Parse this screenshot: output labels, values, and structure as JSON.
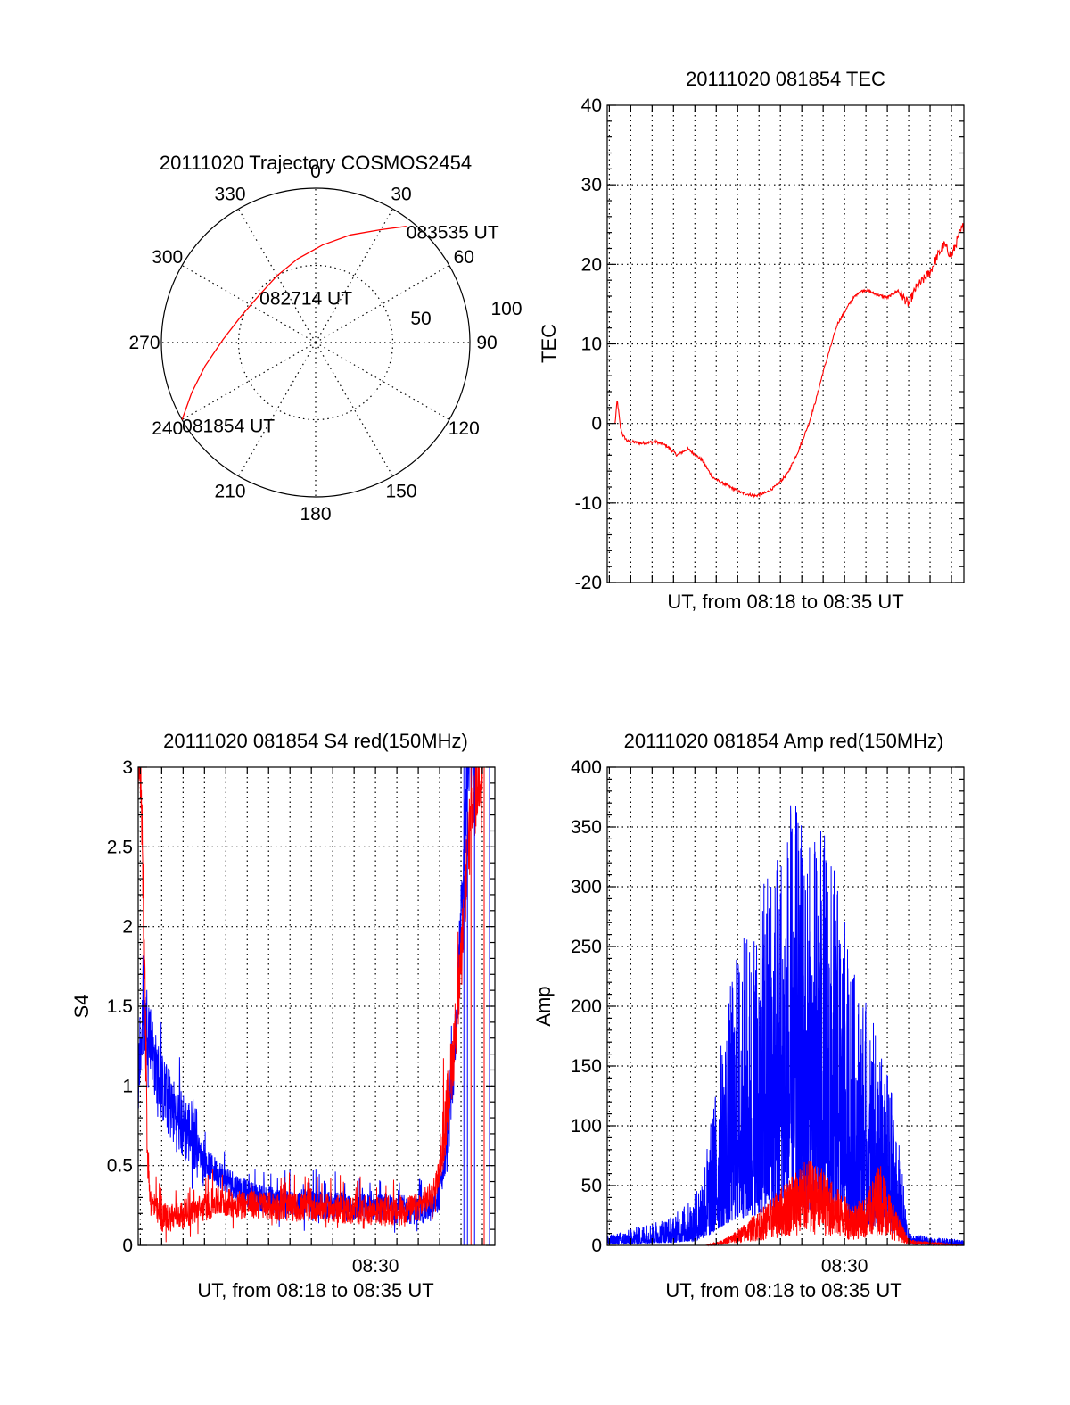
{
  "chart_data": [
    {
      "id": "trajectory",
      "type": "polar",
      "title": "20111020 Trajectory COSMOS2454",
      "angle_labels": [
        "0",
        "30",
        "60",
        "90",
        "120",
        "150",
        "180",
        "210",
        "240",
        "270",
        "300",
        "330"
      ],
      "radial_labels": [
        "50",
        "100"
      ],
      "series": [
        {
          "color": "#ff0000",
          "points": [
            {
              "az": 240,
              "el": 0
            },
            {
              "az": 248,
              "el": 12
            },
            {
              "az": 258,
              "el": 24
            },
            {
              "az": 272,
              "el": 36
            },
            {
              "az": 290,
              "el": 44
            },
            {
              "az": 310,
              "el": 47
            },
            {
              "az": 330,
              "el": 45
            },
            {
              "az": 348,
              "el": 40
            },
            {
              "az": 4,
              "el": 33
            },
            {
              "az": 18,
              "el": 24
            },
            {
              "az": 30,
              "el": 14
            },
            {
              "az": 38,
              "el": 4
            }
          ]
        }
      ],
      "annotations": [
        {
          "text": "081854 UT",
          "az": 240,
          "el": 0
        },
        {
          "text": "082714 UT",
          "az": 312,
          "el": 46
        },
        {
          "text": "083535 UT",
          "az": 38,
          "el": 4
        }
      ]
    },
    {
      "id": "tec",
      "type": "line",
      "title": "20111020 081854 TEC",
      "xlabel": "UT, from 08:18 to 08:35 UT",
      "ylabel": "TEC",
      "xlim": [
        "08:18:54",
        "08:35:35"
      ],
      "ylim": [
        -20,
        40
      ],
      "yticks": [
        "-20",
        "-10",
        "0",
        "10",
        "20",
        "30",
        "40"
      ],
      "series": [
        {
          "color": "#ff0000",
          "x": [
            "08:19:16",
            "08:19:22",
            "08:19:26",
            "08:19:31",
            "08:19:38",
            "08:19:50",
            "08:20:30",
            "08:21:10",
            "08:21:40",
            "08:22:10",
            "08:22:40",
            "08:23:20",
            "08:23:50",
            "08:24:30",
            "08:25:10",
            "08:25:50",
            "08:26:20",
            "08:26:50",
            "08:27:20",
            "08:27:50",
            "08:28:20",
            "08:28:40",
            "08:29:00",
            "08:29:20",
            "08:29:40",
            "08:30:00",
            "08:30:20",
            "08:30:40",
            "08:31:00",
            "08:31:30",
            "08:32:00",
            "08:32:30",
            "08:33:00",
            "08:33:20",
            "08:33:40",
            "08:34:00",
            "08:34:20",
            "08:34:40",
            "08:35:00",
            "08:35:20",
            "08:35:35"
          ],
          "y": [
            0.0,
            3.0,
            1.5,
            -0.5,
            -1.5,
            -2.2,
            -2.5,
            -2.3,
            -2.8,
            -4.0,
            -3.2,
            -4.6,
            -6.8,
            -7.8,
            -8.7,
            -9.1,
            -8.7,
            -7.8,
            -6.3,
            -3.5,
            0.0,
            3.0,
            6.5,
            9.5,
            12.5,
            14.0,
            15.5,
            16.5,
            16.8,
            16.2,
            15.8,
            16.7,
            15.0,
            17.0,
            18.0,
            19.0,
            21.0,
            22.5,
            21.0,
            23.5,
            25.0
          ]
        }
      ]
    },
    {
      "id": "s4",
      "type": "line",
      "title": "20111020 081854 S4 red(150MHz)",
      "xlabel": "UT, from 08:18 to 08:35 UT",
      "ylabel": "S4",
      "xlim": [
        "08:18:54",
        "08:35:35"
      ],
      "ylim": [
        0,
        3
      ],
      "yticks": [
        "0",
        "0.5",
        "1",
        "1.5",
        "2",
        "2.5",
        "3"
      ],
      "xticks": [
        "08:30"
      ],
      "series": [
        {
          "color": "#0000ff",
          "x": [
            "08:18:54",
            "08:19:05",
            "08:19:20",
            "08:19:40",
            "08:20:00",
            "08:20:30",
            "08:21:00",
            "08:21:30",
            "08:22:00",
            "08:22:30",
            "08:23:00",
            "08:23:30",
            "08:24:00",
            "08:25:00",
            "08:26:00",
            "08:27:00",
            "08:28:00",
            "08:29:00",
            "08:30:00",
            "08:31:00",
            "08:32:00",
            "08:32:40",
            "08:33:00",
            "08:33:20",
            "08:33:40",
            "08:34:00",
            "08:34:20",
            "08:34:40"
          ],
          "y": [
            1.0,
            1.3,
            1.4,
            1.1,
            0.95,
            0.8,
            0.7,
            0.65,
            0.5,
            0.45,
            0.4,
            0.35,
            0.3,
            0.27,
            0.25,
            0.24,
            0.23,
            0.22,
            0.22,
            0.21,
            0.2,
            0.22,
            0.3,
            0.6,
            1.1,
            2.0,
            3.0,
            3.0
          ]
        },
        {
          "color": "#ff0000",
          "x": [
            "08:18:54",
            "08:19:02",
            "08:19:10",
            "08:19:20",
            "08:19:30",
            "08:19:45",
            "08:20:00",
            "08:20:30",
            "08:21:00",
            "08:21:30",
            "08:22:00",
            "08:22:30",
            "08:23:00",
            "08:24:00",
            "08:25:00",
            "08:26:00",
            "08:27:00",
            "08:28:00",
            "08:29:00",
            "08:30:00",
            "08:31:00",
            "08:32:00",
            "08:32:40",
            "08:33:00",
            "08:33:20",
            "08:33:40",
            "08:34:00",
            "08:34:20",
            "08:35:00"
          ],
          "y": [
            3.0,
            2.9,
            2.0,
            0.5,
            0.25,
            0.2,
            0.15,
            0.16,
            0.18,
            0.2,
            0.22,
            0.25,
            0.25,
            0.24,
            0.23,
            0.22,
            0.22,
            0.21,
            0.2,
            0.2,
            0.19,
            0.22,
            0.3,
            0.45,
            0.8,
            1.2,
            1.7,
            2.5,
            3.0
          ]
        }
      ]
    },
    {
      "id": "amp",
      "type": "line",
      "title": "20111020 081854 Amp red(150MHz)",
      "xlabel": "UT, from 08:18 to 08:35 UT",
      "ylabel": "Amp",
      "xlim": [
        "08:18:54",
        "08:35:35"
      ],
      "ylim": [
        0,
        400
      ],
      "yticks": [
        "0",
        "50",
        "100",
        "150",
        "200",
        "250",
        "300",
        "350",
        "400"
      ],
      "xticks": [
        "08:30"
      ],
      "series": [
        {
          "color": "#0000ff",
          "x": [
            "08:18:54",
            "08:20:00",
            "08:21:00",
            "08:22:00",
            "08:23:00",
            "08:23:40",
            "08:24:20",
            "08:25:00",
            "08:25:40",
            "08:26:20",
            "08:27:00",
            "08:27:40",
            "08:28:20",
            "08:29:00",
            "08:29:40",
            "08:30:20",
            "08:31:00",
            "08:31:40",
            "08:32:10",
            "08:32:40",
            "08:33:00",
            "08:34:00",
            "08:35:35"
          ],
          "y": [
            5,
            8,
            12,
            15,
            25,
            55,
            110,
            150,
            160,
            190,
            210,
            220,
            200,
            210,
            180,
            140,
            120,
            100,
            80,
            40,
            6,
            4,
            3
          ]
        },
        {
          "color": "#ff0000",
          "x": [
            "08:18:54",
            "08:23:30",
            "08:24:20",
            "08:25:00",
            "08:25:40",
            "08:26:20",
            "08:27:00",
            "08:27:40",
            "08:28:20",
            "08:29:00",
            "08:29:40",
            "08:30:20",
            "08:31:00",
            "08:31:40",
            "08:32:20",
            "08:33:00",
            "08:35:35"
          ],
          "y": [
            0,
            0,
            3,
            8,
            15,
            22,
            30,
            40,
            45,
            40,
            30,
            22,
            25,
            45,
            20,
            3,
            0
          ]
        }
      ]
    }
  ]
}
